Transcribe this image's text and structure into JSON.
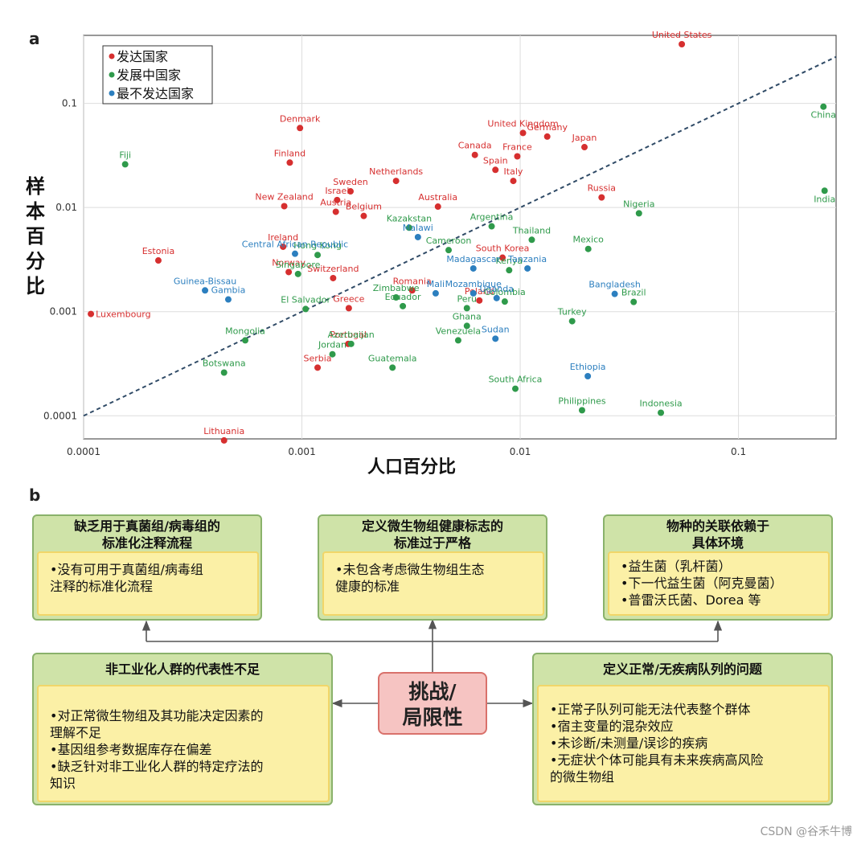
{
  "panel_a_label": "a",
  "panel_b_label": "b",
  "chart_data": {
    "type": "scatter",
    "xscale": "log",
    "yscale": "log",
    "xlim": [
      0.0001,
      0.28
    ],
    "ylim": [
      6e-05,
      0.45
    ],
    "xlabel": "人口百分比",
    "ylabel": "样本百分比",
    "xticks": [
      {
        "v": 0.0001,
        "label": "0.0001"
      },
      {
        "v": 0.001,
        "label": "0.001"
      },
      {
        "v": 0.01,
        "label": "0.01"
      },
      {
        "v": 0.1,
        "label": "0.1"
      }
    ],
    "yticks": [
      {
        "v": 0.0001,
        "label": "0.0001"
      },
      {
        "v": 0.001,
        "label": "0.001"
      },
      {
        "v": 0.01,
        "label": "0.01"
      },
      {
        "v": 0.1,
        "label": "0.1"
      }
    ],
    "grid": true,
    "legend_position": "top-left",
    "reference_line": "y = x (dashed)",
    "series": [
      {
        "name": "发达国家",
        "color": "#d62f2f",
        "points": [
          {
            "label": "United States",
            "x": 0.055,
            "y": 0.37
          },
          {
            "label": "Denmark",
            "x": 0.00098,
            "y": 0.058
          },
          {
            "label": "United Kingdom",
            "x": 0.0103,
            "y": 0.052
          },
          {
            "label": "Germany",
            "x": 0.0133,
            "y": 0.048
          },
          {
            "label": "Japan",
            "x": 0.0197,
            "y": 0.038
          },
          {
            "label": "Canada",
            "x": 0.0062,
            "y": 0.032
          },
          {
            "label": "France",
            "x": 0.0097,
            "y": 0.031
          },
          {
            "label": "Finland",
            "x": 0.00088,
            "y": 0.027
          },
          {
            "label": "Spain",
            "x": 0.0077,
            "y": 0.023
          },
          {
            "label": "Italy",
            "x": 0.0093,
            "y": 0.018
          },
          {
            "label": "Netherlands",
            "x": 0.0027,
            "y": 0.018
          },
          {
            "label": "Sweden",
            "x": 0.00167,
            "y": 0.0143
          },
          {
            "label": "Russia",
            "x": 0.0236,
            "y": 0.0125
          },
          {
            "label": "Israel",
            "x": 0.00145,
            "y": 0.0118
          },
          {
            "label": "Australia",
            "x": 0.0042,
            "y": 0.0102
          },
          {
            "label": "New Zealand",
            "x": 0.00083,
            "y": 0.0103
          },
          {
            "label": "Austria",
            "x": 0.00143,
            "y": 0.0091
          },
          {
            "label": "Belgium",
            "x": 0.00192,
            "y": 0.0083
          },
          {
            "label": "Ireland",
            "x": 0.00082,
            "y": 0.0042
          },
          {
            "label": "Estonia",
            "x": 0.00022,
            "y": 0.0031
          },
          {
            "label": "South Korea",
            "x": 0.0083,
            "y": 0.0033
          },
          {
            "label": "Norway",
            "x": 0.00087,
            "y": 0.0024
          },
          {
            "label": "Switzerland",
            "x": 0.00139,
            "y": 0.0021
          },
          {
            "label": "Romania",
            "x": 0.0032,
            "y": 0.0016
          },
          {
            "label": "Poland",
            "x": 0.0065,
            "y": 0.00128
          },
          {
            "label": "Luxembourg",
            "x": 0.000108,
            "y": 0.00095
          },
          {
            "label": "Greece",
            "x": 0.00164,
            "y": 0.00108
          },
          {
            "label": "Portugal",
            "x": 0.00163,
            "y": 0.00049
          },
          {
            "label": "Serbia",
            "x": 0.00118,
            "y": 0.00029
          },
          {
            "label": "Lithuania",
            "x": 0.00044,
            "y": 5.8e-05
          }
        ]
      },
      {
        "name": "发展中国家",
        "color": "#2f9a4b",
        "points": [
          {
            "label": "China",
            "x": 0.245,
            "y": 0.093
          },
          {
            "label": "Fiji",
            "x": 0.000155,
            "y": 0.026
          },
          {
            "label": "India",
            "x": 0.248,
            "y": 0.0145
          },
          {
            "label": "Nigeria",
            "x": 0.035,
            "y": 0.0088
          },
          {
            "label": "Kazakstan",
            "x": 0.0031,
            "y": 0.0064
          },
          {
            "label": "Argentina",
            "x": 0.0074,
            "y": 0.0066
          },
          {
            "label": "Thailand",
            "x": 0.0113,
            "y": 0.0049
          },
          {
            "label": "Mexico",
            "x": 0.0205,
            "y": 0.004
          },
          {
            "label": "Hong Kong",
            "x": 0.00118,
            "y": 0.0035
          },
          {
            "label": "Cameroon",
            "x": 0.0047,
            "y": 0.0039
          },
          {
            "label": "Kenya",
            "x": 0.0089,
            "y": 0.0025
          },
          {
            "label": "Singapore",
            "x": 0.00096,
            "y": 0.0023
          },
          {
            "label": "Zimbabwe",
            "x": 0.0027,
            "y": 0.00137
          },
          {
            "label": "Ecuador",
            "x": 0.0029,
            "y": 0.00113
          },
          {
            "label": "Brazil",
            "x": 0.0331,
            "y": 0.00124
          },
          {
            "label": "El Salvador",
            "x": 0.00104,
            "y": 0.00106
          },
          {
            "label": "Peru",
            "x": 0.0057,
            "y": 0.00108
          },
          {
            "label": "Colombia",
            "x": 0.0085,
            "y": 0.00125
          },
          {
            "label": "Turkey",
            "x": 0.0173,
            "y": 0.00081
          },
          {
            "label": "Ghana",
            "x": 0.0057,
            "y": 0.00073
          },
          {
            "label": "Mongolia",
            "x": 0.00055,
            "y": 0.00053
          },
          {
            "label": "Venezuela",
            "x": 0.0052,
            "y": 0.00053
          },
          {
            "label": "Jordan",
            "x": 0.00138,
            "y": 0.00039
          },
          {
            "label": "Guatemala",
            "x": 0.0026,
            "y": 0.00029
          },
          {
            "label": "Botswana",
            "x": 0.00044,
            "y": 0.00026
          },
          {
            "label": "South Africa",
            "x": 0.0095,
            "y": 0.000182
          },
          {
            "label": "Philippines",
            "x": 0.0192,
            "y": 0.000113
          },
          {
            "label": "Indonesia",
            "x": 0.0441,
            "y": 0.000107
          },
          {
            "label": "Azerbaijan",
            "x": 0.00168,
            "y": 0.00049
          }
        ]
      },
      {
        "name": "最不发达国家",
        "color": "#2c7fbf",
        "points": [
          {
            "label": "Malawi",
            "x": 0.0034,
            "y": 0.0052
          },
          {
            "label": "Central African Republic",
            "x": 0.00093,
            "y": 0.0036
          },
          {
            "label": "Madagascar",
            "x": 0.0061,
            "y": 0.0026
          },
          {
            "label": "Tanzania",
            "x": 0.0108,
            "y": 0.0026
          },
          {
            "label": "Guinea-Bissau",
            "x": 0.00036,
            "y": 0.0016
          },
          {
            "label": "Mozambique",
            "x": 0.0061,
            "y": 0.0015
          },
          {
            "label": "Bangladesh",
            "x": 0.0271,
            "y": 0.00148
          },
          {
            "label": "Uganda",
            "x": 0.0078,
            "y": 0.00135
          },
          {
            "label": "Mali",
            "x": 0.0041,
            "y": 0.0015
          },
          {
            "label": "Gambia",
            "x": 0.00046,
            "y": 0.00131
          },
          {
            "label": "Sudan",
            "x": 0.0077,
            "y": 0.00055
          },
          {
            "label": "Ethiopia",
            "x": 0.0204,
            "y": 0.00024
          }
        ]
      }
    ]
  },
  "panel_b": {
    "center_label": [
      "挑战/",
      "局限性"
    ],
    "boxes": [
      {
        "title": [
          "缺乏用于真菌组/病毒组的",
          "标准化注释流程"
        ],
        "bullets": [
          "•没有可用于真菌组/病毒组",
          "注释的标准化流程"
        ]
      },
      {
        "title": [
          "定义微生物组健康标志的",
          "标准过于严格"
        ],
        "bullets": [
          "•未包含考虑微生物组生态",
          "健康的标准"
        ]
      },
      {
        "title": [
          "物种的关联依赖于",
          "具体环境"
        ],
        "bullets": [
          "•益生菌（乳杆菌）",
          "•下一代益生菌（阿克曼菌）",
          "•普雷沃氏菌、Dorea 等"
        ]
      },
      {
        "title": [
          "非工业化人群的代表性不足"
        ],
        "bullets": [
          "•对正常微生物组及其功能决定因素的",
          "理解不足",
          "•基因组参考数据库存在偏差",
          "•缺乏针对非工业化人群的特定疗法的",
          "知识"
        ]
      },
      {
        "title": [
          "定义正常/无疾病队列的问题"
        ],
        "bullets": [
          "•正常子队列可能无法代表整个群体",
          "•宿主变量的混杂效应",
          "•未诊断/未测量/误诊的疾病",
          "•无症状个体可能具有未来疾病高风险",
          "的微生物组"
        ]
      }
    ]
  },
  "footer": "CSDN @谷禾牛博"
}
